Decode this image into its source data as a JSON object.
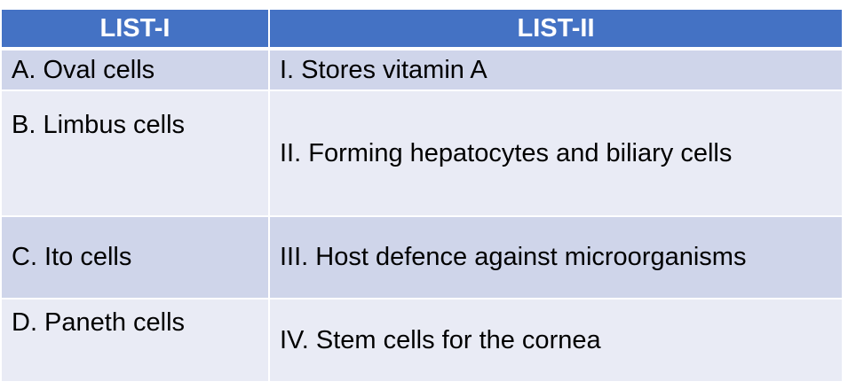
{
  "headers": [
    "LIST-I",
    "LIST-II"
  ],
  "rows": [
    {
      "list1": "A. Oval cells",
      "list2": "I. Stores vitamin A"
    },
    {
      "list1": "B. Limbus cells",
      "list2": "II. Forming hepatocytes and biliary cells"
    },
    {
      "list1": "C. Ito cells",
      "list2": "III. Host defence against microorganisms"
    },
    {
      "list1": "D. Paneth cells",
      "list2": "IV. Stem cells for the cornea"
    }
  ],
  "colors": {
    "header": "#4472C4",
    "row_dark": "#CFD5EA",
    "row_light": "#E9EBF5"
  }
}
